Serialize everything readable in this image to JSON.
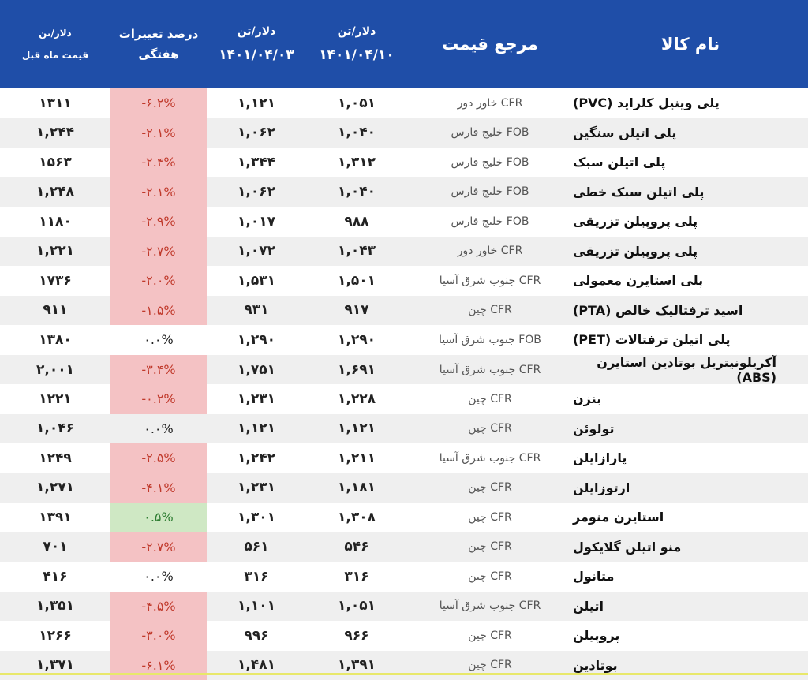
{
  "header": {
    "prev_month": {
      "unit": "دلار/تن",
      "label": "قیمت ماه قبل"
    },
    "change": {
      "line1": "درصد تغییرات",
      "line2": "هفتگی"
    },
    "date2": {
      "unit": "دلار/تن",
      "date": "۱۴۰۱/۰۴/۰۳"
    },
    "date1": {
      "unit": "دلار/تن",
      "date": "۱۴۰۱/۰۴/۱۰"
    },
    "reference": "مرجع قیمت",
    "name": "نام کالا"
  },
  "rows": [
    {
      "name": "پلی وینیل کلراید (PVC)",
      "ref": "CFR  خاور دور",
      "d1": "۱,۰۵۱",
      "d2": "۱,۱۲۱",
      "change": "-۶.۲%",
      "status": "neg",
      "prev": "۱۳۱۱"
    },
    {
      "name": "پلی اتیلن سنگین",
      "ref": "FOB  خلیج فارس",
      "d1": "۱,۰۴۰",
      "d2": "۱,۰۶۲",
      "change": "-۲.۱%",
      "status": "neg",
      "prev": "۱,۲۴۴"
    },
    {
      "name": "پلی اتیلن سبک",
      "ref": "FOB  خلیج فارس",
      "d1": "۱,۳۱۲",
      "d2": "۱,۳۴۴",
      "change": "-۲.۴%",
      "status": "neg",
      "prev": "۱۵۶۳"
    },
    {
      "name": "پلی اتیلن سبک خطی",
      "ref": "FOB  خلیج فارس",
      "d1": "۱,۰۴۰",
      "d2": "۱,۰۶۲",
      "change": "-۲.۱%",
      "status": "neg",
      "prev": "۱,۲۴۸"
    },
    {
      "name": "پلی پروپیلن تزریقی",
      "ref": "FOB  خلیج فارس",
      "d1": "۹۸۸",
      "d2": "۱,۰۱۷",
      "change": "-۲.۹%",
      "status": "neg",
      "prev": "۱۱۸۰"
    },
    {
      "name": "پلی پروپیلن تزریقی",
      "ref": "CFR  خاور دور",
      "d1": "۱,۰۴۳",
      "d2": "۱,۰۷۲",
      "change": "-۲.۷%",
      "status": "neg",
      "prev": "۱,۲۲۱"
    },
    {
      "name": "پلی استایرن معمولی",
      "ref": "CFR جنوب شرق آسیا",
      "d1": "۱,۵۰۱",
      "d2": "۱,۵۳۱",
      "change": "-۲.۰%",
      "status": "neg",
      "prev": "۱۷۳۶"
    },
    {
      "name": "اسید ترفتالیک خالص (PTA)",
      "ref": "CFR  چین",
      "d1": "۹۱۷",
      "d2": "۹۳۱",
      "change": "-۱.۵%",
      "status": "neg",
      "prev": "۹۱۱"
    },
    {
      "name": "پلی اتیلن ترفتالات (PET)",
      "ref": "FOB جنوب شرق آسیا",
      "d1": "۱,۲۹۰",
      "d2": "۱,۲۹۰",
      "change": "۰.۰%",
      "status": "zero",
      "prev": "۱۳۸۰"
    },
    {
      "name": "آکریلونیتریل بوتادین استایرن (ABS)",
      "ref": "CFR جنوب شرق آسیا",
      "d1": "۱,۶۹۱",
      "d2": "۱,۷۵۱",
      "change": "-۳.۴%",
      "status": "neg",
      "prev": "۲,۰۰۱"
    },
    {
      "name": "بنزن",
      "ref": "CFR  چین",
      "d1": "۱,۲۲۸",
      "d2": "۱,۲۳۱",
      "change": "-۰.۲%",
      "status": "neg",
      "prev": "۱۲۲۱"
    },
    {
      "name": "تولوئن",
      "ref": "CFR  چین",
      "d1": "۱,۱۲۱",
      "d2": "۱,۱۲۱",
      "change": "۰.۰%",
      "status": "zero",
      "prev": "۱,۰۴۶"
    },
    {
      "name": "پارازایلن",
      "ref": "CFR جنوب شرق آسیا",
      "d1": "۱,۲۱۱",
      "d2": "۱,۲۴۲",
      "change": "-۲.۵%",
      "status": "neg",
      "prev": "۱۲۴۹"
    },
    {
      "name": "ارتوزایلن",
      "ref": "CFR  چین",
      "d1": "۱,۱۸۱",
      "d2": "۱,۲۳۱",
      "change": "-۴.۱%",
      "status": "neg",
      "prev": "۱,۲۷۱"
    },
    {
      "name": "استایرن منومر",
      "ref": "CFR  چین",
      "d1": "۱,۳۰۸",
      "d2": "۱,۳۰۱",
      "change": "۰.۵%",
      "status": "pos",
      "prev": "۱۳۹۱"
    },
    {
      "name": "منو اتیلن گلایکول",
      "ref": "CFR  چین",
      "d1": "۵۴۶",
      "d2": "۵۶۱",
      "change": "-۲.۷%",
      "status": "neg",
      "prev": "۷۰۱"
    },
    {
      "name": "متانول",
      "ref": "CFR  چین",
      "d1": "۳۱۶",
      "d2": "۳۱۶",
      "change": "۰.۰%",
      "status": "zero",
      "prev": "۴۱۶"
    },
    {
      "name": "اتیلن",
      "ref": "CFR جنوب شرق آسیا",
      "d1": "۱,۰۵۱",
      "d2": "۱,۱۰۱",
      "change": "-۴.۵%",
      "status": "neg",
      "prev": "۱,۳۵۱"
    },
    {
      "name": "پروپیلن",
      "ref": "CFR  چین",
      "d1": "۹۶۶",
      "d2": "۹۹۶",
      "change": "-۳.۰%",
      "status": "neg",
      "prev": "۱۲۶۶"
    },
    {
      "name": "بوتادین",
      "ref": "CFR  چین",
      "d1": "۱,۳۹۱",
      "d2": "۱,۴۸۱",
      "change": "-۶.۱%",
      "status": "neg",
      "prev": "۱,۳۷۱"
    }
  ],
  "colors": {
    "header_bg": "#1f4ea8",
    "negative_bg": "#f4c2c4",
    "positive_bg": "#cfe8c4",
    "alt_row": "#efefef"
  }
}
